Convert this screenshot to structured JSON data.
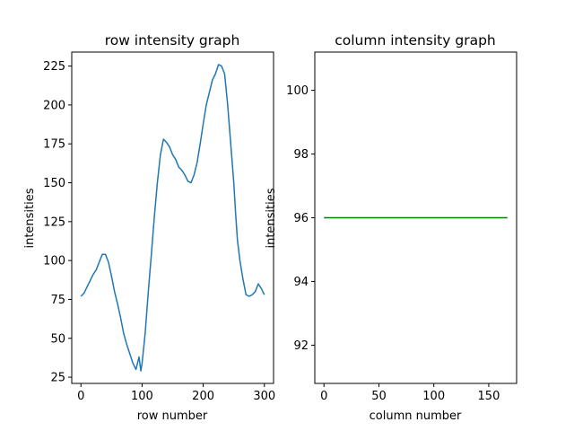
{
  "chart_data": [
    {
      "type": "line",
      "title": "row intensity graph",
      "xlabel": "row number",
      "ylabel": "intensities",
      "xlim": [
        -15,
        315
      ],
      "ylim": [
        21,
        234
      ],
      "xticks": [
        0,
        100,
        200,
        300
      ],
      "yticks": [
        25,
        50,
        75,
        100,
        125,
        150,
        175,
        200,
        225
      ],
      "grid": false,
      "series": [
        {
          "color": "#1f77b4",
          "x": [
            0,
            5,
            10,
            15,
            20,
            25,
            30,
            35,
            40,
            45,
            50,
            55,
            60,
            65,
            70,
            75,
            80,
            85,
            90,
            95,
            98,
            100,
            105,
            110,
            115,
            120,
            125,
            130,
            135,
            140,
            145,
            150,
            155,
            160,
            165,
            170,
            175,
            180,
            185,
            190,
            195,
            200,
            205,
            210,
            215,
            220,
            225,
            230,
            235,
            240,
            245,
            250,
            253,
            256,
            260,
            265,
            270,
            275,
            280,
            285,
            290,
            295,
            300
          ],
          "y": [
            77,
            79,
            83,
            87,
            91,
            94,
            99,
            104,
            104,
            99,
            90,
            80,
            72,
            63,
            53,
            46,
            40,
            34,
            30,
            38,
            29,
            34,
            53,
            79,
            103,
            128,
            150,
            168,
            178,
            176,
            173,
            168,
            165,
            160,
            158,
            155,
            151,
            150,
            155,
            163,
            175,
            188,
            200,
            208,
            216,
            220,
            226,
            225,
            220,
            200,
            175,
            150,
            130,
            113,
            100,
            88,
            78,
            77,
            78,
            80,
            85,
            82,
            78
          ]
        }
      ]
    },
    {
      "type": "line",
      "title": "column intensity graph",
      "xlabel": "column number",
      "ylabel": "intensities",
      "xlim": [
        -8.35,
        175.35
      ],
      "ylim": [
        90.8,
        101.2
      ],
      "xticks": [
        0,
        50,
        100,
        150
      ],
      "yticks": [
        92,
        94,
        96,
        98,
        100
      ],
      "grid": false,
      "series": [
        {
          "color": "#008000",
          "x": [
            0,
            167
          ],
          "y": [
            96,
            96
          ]
        }
      ]
    }
  ]
}
